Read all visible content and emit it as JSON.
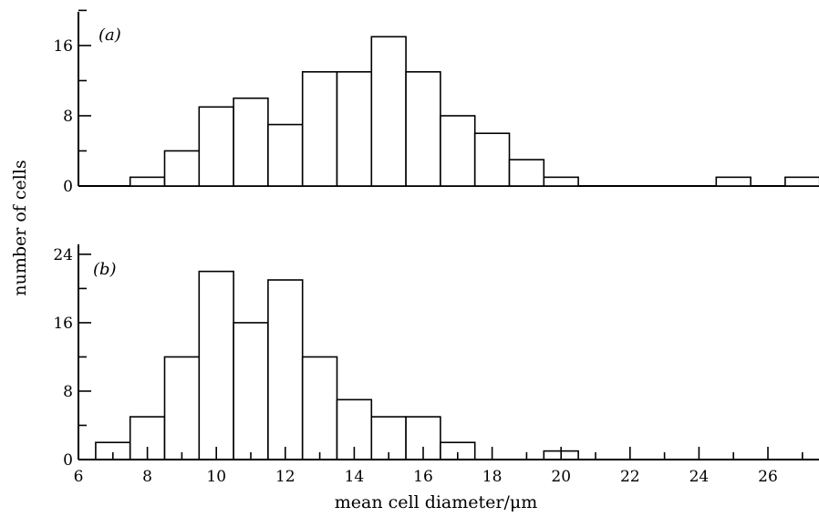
{
  "chart_data": [
    {
      "type": "bar",
      "panel_label": "(a)",
      "bin_width": 1,
      "bin_centers": [
        7,
        8,
        9,
        10,
        11,
        12,
        13,
        14,
        15,
        16,
        17,
        18,
        19,
        20,
        21,
        22,
        23,
        24,
        25,
        26,
        27
      ],
      "values": [
        0,
        1,
        4,
        9,
        10,
        7,
        13,
        13,
        17,
        13,
        8,
        6,
        3,
        1,
        0,
        0,
        0,
        0,
        1,
        0,
        1
      ],
      "yticks": [
        0,
        8,
        16
      ],
      "ylim": [
        0,
        20
      ],
      "xlim": [
        6,
        27.5
      ]
    },
    {
      "type": "bar",
      "panel_label": "(b)",
      "bin_width": 1,
      "bin_centers": [
        7,
        8,
        9,
        10,
        11,
        12,
        13,
        14,
        15,
        16,
        17,
        18,
        19,
        20
      ],
      "values": [
        2,
        5,
        12,
        22,
        16,
        21,
        12,
        7,
        5,
        5,
        2,
        0,
        0,
        1
      ],
      "yticks": [
        0,
        8,
        16,
        24
      ],
      "ylim": [
        0,
        24
      ],
      "xlim": [
        6,
        27.5
      ]
    }
  ],
  "x_ticks": [
    6,
    8,
    10,
    12,
    14,
    16,
    18,
    20,
    22,
    24,
    26
  ],
  "xlabel": "mean cell diameter/μm",
  "ylabel": "number of cells"
}
